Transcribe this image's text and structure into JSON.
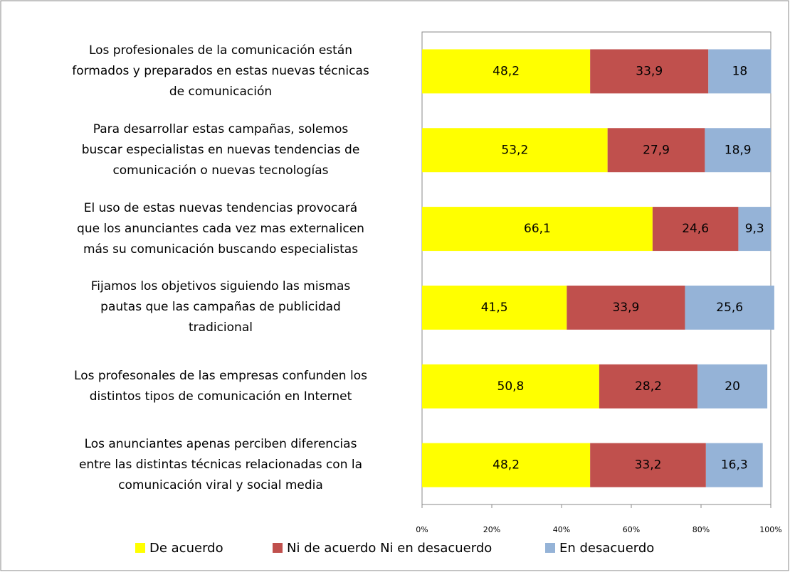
{
  "chart_data": {
    "type": "stacked_bar_horizontal",
    "categories": [
      "Los profesionales de la comunicación están\nformados y preparados en estas nuevas técnicas\nde comunicación",
      "Para desarrollar estas campañas, solemos\nbuscar especialistas en nuevas tendencias de\ncomunicación o nuevas tecnologías",
      "El uso de estas nuevas tendencias provocará\nque los anunciantes cada vez mas externalicen\nmás su comunicación buscando especialistas",
      "Fijamos los objetivos siguiendo las mismas\npautas que las campañas de publicidad\ntradicional",
      "Los profesonales de las empresas confunden los\ndistintos tipos de comunicación en Internet",
      "Los anunciantes apenas perciben diferencias\nentre las distintas técnicas relacionadas con la\ncomunicación viral y social media"
    ],
    "series": [
      {
        "name": "De acuerdo",
        "color": "#ffff00",
        "values": [
          48.2,
          53.2,
          66.1,
          41.5,
          50.8,
          48.2
        ],
        "value_labels": [
          "48,2",
          "53,2",
          "66,1",
          "41,5",
          "50,8",
          "48,2"
        ]
      },
      {
        "name": "Ni de acuerdo Ni en desacuerdo",
        "color": "#c0504d",
        "values": [
          33.9,
          27.9,
          24.6,
          33.9,
          28.2,
          33.2
        ],
        "value_labels": [
          "33,9",
          "27,9",
          "24,6",
          "33,9",
          "28,2",
          "33,2"
        ]
      },
      {
        "name": "En desacuerdo",
        "color": "#95b3d7",
        "values": [
          18,
          18.9,
          9.3,
          25.6,
          20,
          16.3
        ],
        "value_labels": [
          "18",
          "18,9",
          "9,3",
          "25,6",
          "20",
          "16,3"
        ]
      }
    ],
    "xlim": [
      0,
      100
    ],
    "xticks": [
      {
        "value": 0,
        "label": "0%"
      },
      {
        "value": 20,
        "label": "20%"
      },
      {
        "value": 40,
        "label": "40%"
      },
      {
        "value": 60,
        "label": "60%"
      },
      {
        "value": 80,
        "label": "80%"
      },
      {
        "value": 100,
        "label": "100%"
      }
    ],
    "legend": "bottom"
  }
}
